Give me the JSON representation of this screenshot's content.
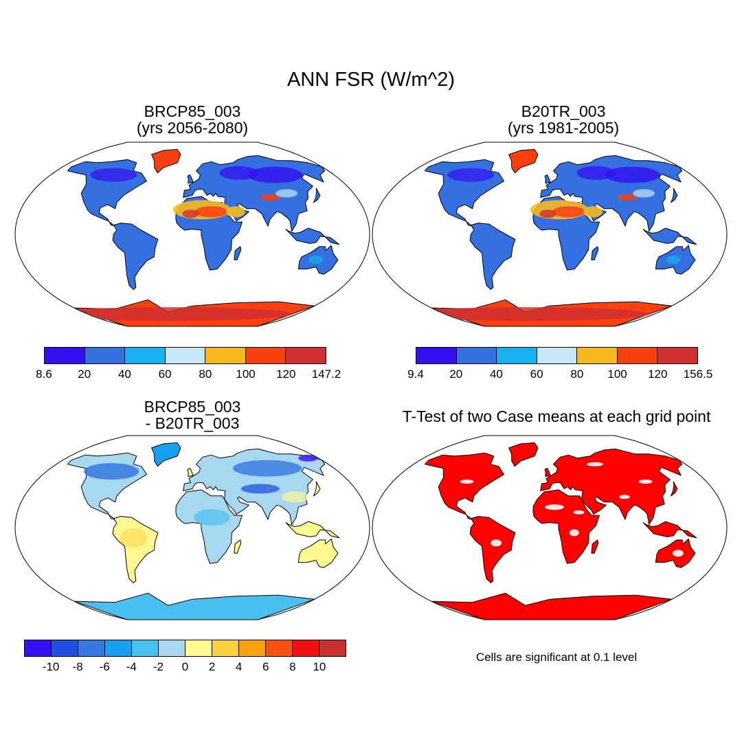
{
  "figure": {
    "title": "ANN FSR (W/m^2)",
    "panels": [
      {
        "title_line1": "BRCP85_003",
        "title_line2": "(yrs 2056-2080)",
        "colorbar": {
          "colors": [
            "#3410f0",
            "#3470e0",
            "#18b0f0",
            "#c8e8f8",
            "#f8b820",
            "#f84010",
            "#d03030"
          ],
          "labels": [
            "8.6",
            "20",
            "40",
            "60",
            "80",
            "100",
            "120",
            "147.2"
          ]
        }
      },
      {
        "title_line1": "B20TR_003",
        "title_line2": "(yrs 1981-2005)",
        "colorbar": {
          "colors": [
            "#3410f0",
            "#3470e0",
            "#18b0f0",
            "#c8e8f8",
            "#f8b820",
            "#f84010",
            "#d03030"
          ],
          "labels": [
            "9.4",
            "20",
            "40",
            "60",
            "80",
            "100",
            "120",
            "156.5"
          ]
        }
      },
      {
        "title_line1": "BRCP85_003",
        "title_line2": "- B20TR_003",
        "colorbar": {
          "colors": [
            "#3410f0",
            "#2050e0",
            "#3478e0",
            "#18a0f0",
            "#48c0f0",
            "#a8d8f0",
            "#fff890",
            "#f8d040",
            "#f8a010",
            "#f85010",
            "#f01010",
            "#c83030"
          ],
          "labels": [
            "-10",
            "-8",
            "-6",
            "-4",
            "-2",
            "0",
            "2",
            "4",
            "6",
            "8",
            "10"
          ]
        }
      },
      {
        "title": "T-Test of two Case means at each grid point",
        "significant_color": "#ff0000"
      }
    ],
    "note": "Cells are significant at 0.1 level"
  }
}
